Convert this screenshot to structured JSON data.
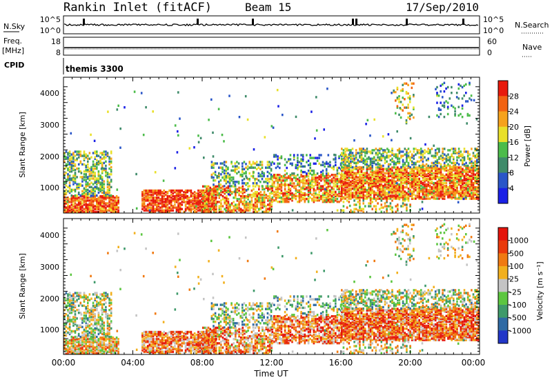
{
  "header": {
    "station": "Rankin Inlet (fitACF)",
    "beam": "Beam 15",
    "date": "17/Sep/2010"
  },
  "chart_data": [
    {
      "type": "line",
      "id": "nsky-panel",
      "ylabel": "N.Sky",
      "ylabel_right": "N.Search",
      "yticks_left": [
        "10^5",
        "10^0"
      ],
      "yticks_right": [
        "10^5",
        "10^0"
      ]
    },
    {
      "type": "line",
      "id": "freq-panel",
      "ylabel": "Freq.",
      "yunit": "[MHz]",
      "ylabel_right": "Nave",
      "yticks_left": [
        "18",
        "8"
      ],
      "yticks_right": [
        "60",
        "0"
      ]
    },
    {
      "type": "table",
      "id": "cpid-panel",
      "label": "CPID",
      "value": "themis 3300"
    },
    {
      "type": "heatmap",
      "id": "power-panel",
      "ylabel": "Slant Range [km]",
      "yticks": [
        "4000",
        "3000",
        "2000",
        "1000"
      ],
      "ylim": [
        180,
        4500
      ],
      "colorbar_label": "Power [dB]",
      "colorbar_ticks": [
        "28",
        "24",
        "20",
        "16",
        "12",
        "8",
        "4"
      ],
      "colors": [
        "#1a20e6",
        "#2a56c8",
        "#3f8b6a",
        "#4cbc4a",
        "#e9e02a",
        "#f6a21c",
        "#f26312",
        "#e81a0c"
      ]
    },
    {
      "type": "heatmap",
      "id": "velocity-panel",
      "ylabel": "Slant Range [km]",
      "yticks": [
        "4000",
        "3000",
        "2000",
        "1000"
      ],
      "ylim": [
        180,
        4500
      ],
      "colorbar_label": "Velocity [m s⁻¹]",
      "colorbar_ticks": [
        "1000",
        "500",
        "100",
        "25",
        "-25",
        "-100",
        "-500",
        "-1000"
      ],
      "colors": [
        "#2236c8",
        "#2f6aa4",
        "#3f9a6a",
        "#5cc640",
        "#c4c4c4",
        "#f2b01e",
        "#f07a12",
        "#ea3a0c",
        "#e4140c"
      ]
    }
  ],
  "xaxis": {
    "label": "Time UT",
    "ticks": [
      "00:00",
      "04:00",
      "08:00",
      "12:00",
      "16:00",
      "20:00",
      "00:00"
    ]
  }
}
